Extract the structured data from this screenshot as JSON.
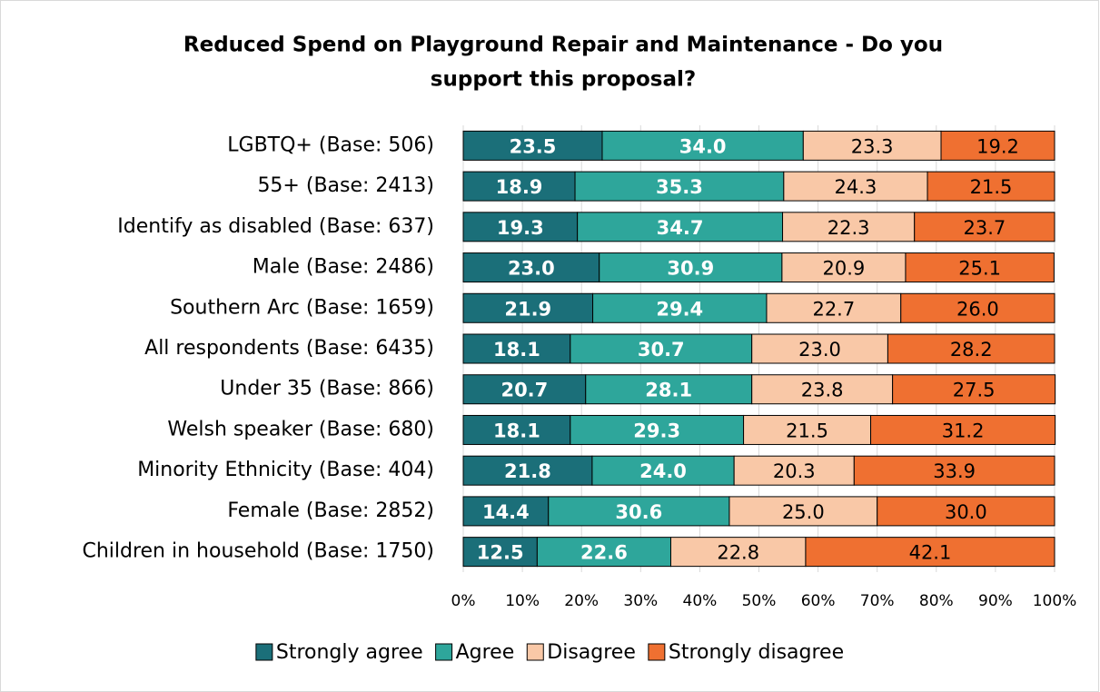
{
  "chart_data": {
    "type": "stacked-bar-horizontal",
    "title": [
      "Reduced Spend on Playground Repair and Maintenance -  Do you",
      "support this proposal?"
    ],
    "categories": [
      "LGBTQ+ (Base: 506)",
      "55+ (Base: 2413)",
      "Identify as disabled (Base: 637)",
      "Male (Base: 2486)",
      "Southern Arc (Base: 1659)",
      "All respondents (Base: 6435)",
      "Under 35 (Base: 866)",
      "Welsh speaker (Base: 680)",
      "Minority Ethnicity (Base: 404)",
      "Female (Base: 2852)",
      "Children in household (Base: 1750)"
    ],
    "series": [
      {
        "name": "Strongly agree",
        "color": "#1b6f79",
        "values": [
          23.5,
          18.9,
          19.3,
          23.0,
          21.9,
          18.1,
          20.7,
          18.1,
          21.8,
          14.4,
          12.5
        ],
        "value_labels": [
          "23.5",
          "18.9",
          "19.3",
          "23.0",
          "21.9",
          "18.1",
          "20.7",
          "18.1",
          "21.8",
          "14.4",
          "12.5"
        ]
      },
      {
        "name": "Agree",
        "color": "#2ea69b",
        "values": [
          34.0,
          35.3,
          34.7,
          30.9,
          29.4,
          30.7,
          28.1,
          29.3,
          24.0,
          30.6,
          22.6
        ],
        "value_labels": [
          "34.0",
          "35.3",
          "34.7",
          "30.9",
          "29.4",
          "30.7",
          "28.1",
          "29.3",
          "24.0",
          "30.6",
          "22.6"
        ]
      },
      {
        "name": "Disagree",
        "color": "#f9c8a7",
        "values": [
          23.3,
          24.3,
          22.3,
          20.9,
          22.7,
          23.0,
          23.8,
          21.5,
          20.3,
          25.0,
          22.8
        ],
        "value_labels": [
          "23.3",
          "24.3",
          "22.3",
          "20.9",
          "22.7",
          "23.0",
          "23.8",
          "21.5",
          "20.3",
          "25.0",
          "22.8"
        ]
      },
      {
        "name": "Strongly disagree",
        "color": "#ef7031",
        "values": [
          19.2,
          21.5,
          23.7,
          25.1,
          26.0,
          28.2,
          27.5,
          31.2,
          33.9,
          30.0,
          42.1
        ],
        "value_labels": [
          "19.2",
          "21.5",
          "23.7",
          "25.1",
          "26.0",
          "28.2",
          "27.5",
          "31.2",
          "33.9",
          "30.0",
          "42.1"
        ]
      }
    ],
    "xlim": [
      0,
      100
    ],
    "xticks": [
      {
        "value": 0,
        "label": "0%"
      },
      {
        "value": 10,
        "label": "10%"
      },
      {
        "value": 20,
        "label": "20%"
      },
      {
        "value": 30,
        "label": "30%"
      },
      {
        "value": 40,
        "label": "40%"
      },
      {
        "value": 50,
        "label": "50%"
      },
      {
        "value": 60,
        "label": "60%"
      },
      {
        "value": 70,
        "label": "70%"
      },
      {
        "value": 80,
        "label": "80%"
      },
      {
        "value": 90,
        "label": "90%"
      },
      {
        "value": 100,
        "label": "100%"
      }
    ],
    "grid": true,
    "legend": "bottom"
  }
}
